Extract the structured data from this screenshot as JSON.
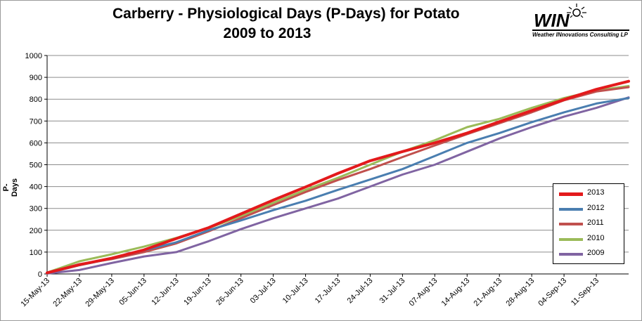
{
  "title": {
    "line1": "Carberry - Physiological Days (P-Days) for Potato",
    "line2": "2009 to 2013"
  },
  "logo": {
    "word": "WIN",
    "tagline": "Weather INnovations Consulting LP"
  },
  "chart_data": {
    "type": "line",
    "title": "Carberry - Physiological Days (P-Days) for Potato 2009 to 2013",
    "xlabel": "",
    "ylabel": "P-Days",
    "ylim": [
      0,
      1000
    ],
    "yticks": [
      0,
      100,
      200,
      300,
      400,
      500,
      600,
      700,
      800,
      900,
      1000
    ],
    "xlim": [
      "2013-05-15",
      "2013-09-18"
    ],
    "xticks": [
      "15-May-13",
      "22-May-13",
      "29-May-13",
      "05-Jun-13",
      "12-Jun-13",
      "19-Jun-13",
      "26-Jun-13",
      "03-Jul-13",
      "10-Jul-13",
      "17-Jul-13",
      "24-Jul-13",
      "31-Jul-13",
      "07-Aug-13",
      "14-Aug-13",
      "21-Aug-13",
      "28-Aug-13",
      "04-Sep-13",
      "11-Sep-13"
    ],
    "grid": "horizontal",
    "legend_position": "bottom-right",
    "series": [
      {
        "name": "2013",
        "color": "#e31a1c",
        "width": 4,
        "x": [
          "2013-05-15",
          "2013-05-22",
          "2013-05-29",
          "2013-06-05",
          "2013-06-12",
          "2013-06-19",
          "2013-06-26",
          "2013-07-03",
          "2013-07-10",
          "2013-07-17",
          "2013-07-24",
          "2013-07-31",
          "2013-08-07",
          "2013-08-14",
          "2013-08-21",
          "2013-08-28",
          "2013-09-04",
          "2013-09-11",
          "2013-09-18"
        ],
        "values": [
          5,
          42,
          72,
          110,
          162,
          212,
          275,
          338,
          398,
          460,
          518,
          560,
          600,
          645,
          697,
          748,
          798,
          845,
          882
        ]
      },
      {
        "name": "2012",
        "color": "#4a7eb0",
        "width": 3,
        "x": [
          "2013-05-15",
          "2013-05-22",
          "2013-05-29",
          "2013-06-05",
          "2013-06-12",
          "2013-06-19",
          "2013-06-26",
          "2013-07-03",
          "2013-07-10",
          "2013-07-17",
          "2013-07-24",
          "2013-07-31",
          "2013-08-07",
          "2013-08-14",
          "2013-08-21",
          "2013-08-28",
          "2013-09-04",
          "2013-09-11",
          "2013-09-18"
        ],
        "values": [
          3,
          40,
          70,
          108,
          145,
          200,
          245,
          292,
          335,
          385,
          432,
          480,
          540,
          600,
          645,
          695,
          740,
          780,
          805
        ]
      },
      {
        "name": "2011",
        "color": "#c0504d",
        "width": 3,
        "x": [
          "2013-05-15",
          "2013-05-22",
          "2013-05-29",
          "2013-06-05",
          "2013-06-12",
          "2013-06-19",
          "2013-06-26",
          "2013-07-03",
          "2013-07-10",
          "2013-07-17",
          "2013-07-24",
          "2013-07-31",
          "2013-08-07",
          "2013-08-14",
          "2013-08-21",
          "2013-08-28",
          "2013-09-04",
          "2013-09-11",
          "2013-09-18"
        ],
        "values": [
          4,
          45,
          68,
          100,
          140,
          195,
          255,
          315,
          375,
          430,
          480,
          535,
          588,
          640,
          690,
          740,
          795,
          835,
          855
        ]
      },
      {
        "name": "2010",
        "color": "#9bbb59",
        "width": 3,
        "x": [
          "2013-05-15",
          "2013-05-22",
          "2013-05-29",
          "2013-06-05",
          "2013-06-12",
          "2013-06-19",
          "2013-06-26",
          "2013-07-03",
          "2013-07-10",
          "2013-07-17",
          "2013-07-24",
          "2013-07-31",
          "2013-08-07",
          "2013-08-14",
          "2013-08-21",
          "2013-08-28",
          "2013-09-04",
          "2013-09-11",
          "2013-09-18"
        ],
        "values": [
          6,
          58,
          90,
          125,
          165,
          210,
          265,
          325,
          385,
          440,
          500,
          560,
          612,
          672,
          710,
          760,
          805,
          840,
          860
        ]
      },
      {
        "name": "2009",
        "color": "#8064a2",
        "width": 3,
        "x": [
          "2013-05-15",
          "2013-05-22",
          "2013-05-29",
          "2013-06-05",
          "2013-06-12",
          "2013-06-19",
          "2013-06-26",
          "2013-07-03",
          "2013-07-10",
          "2013-07-17",
          "2013-07-24",
          "2013-07-31",
          "2013-08-07",
          "2013-08-14",
          "2013-08-21",
          "2013-08-28",
          "2013-09-04",
          "2013-09-11",
          "2013-09-18"
        ],
        "values": [
          2,
          18,
          50,
          80,
          100,
          150,
          205,
          255,
          300,
          345,
          400,
          455,
          500,
          560,
          620,
          672,
          720,
          760,
          808
        ]
      }
    ]
  }
}
